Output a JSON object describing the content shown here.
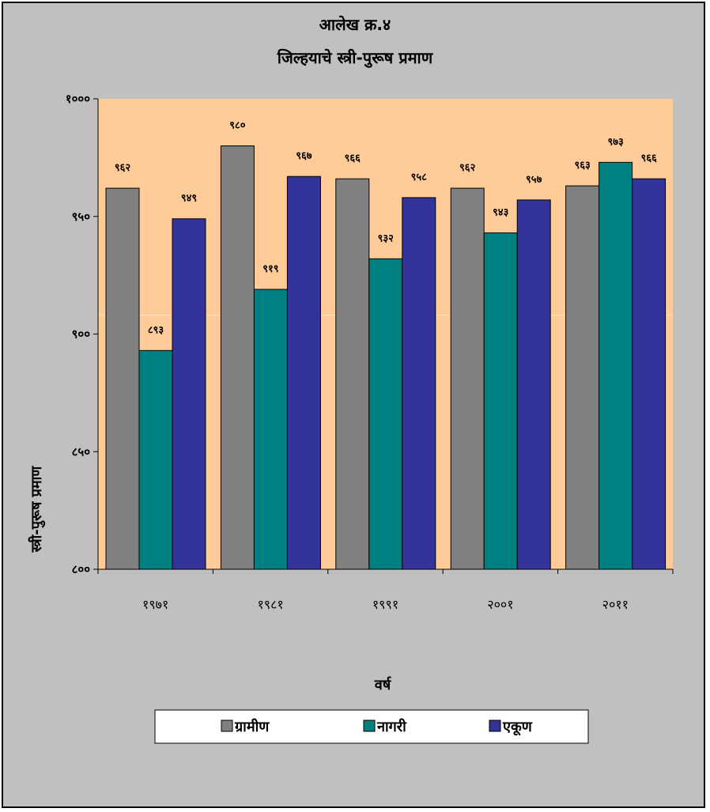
{
  "colors": {
    "frame_bg": "#c0c0c0",
    "plot_bg": "#ffcc99",
    "gridline": "#f5e6c8"
  },
  "chart_data": {
    "type": "bar",
    "title": "आलेख क्र.४",
    "subtitle": "जिल्हयाचे स्त्री-पुरूष प्रमाण",
    "xlabel": "वर्ष",
    "ylabel": "स्त्री-पुरूष प्रमाण",
    "ylim": [
      800,
      1000
    ],
    "yticks": [
      800,
      850,
      900,
      950,
      1000
    ],
    "ytick_labels": [
      "८००",
      "८५०",
      "९००",
      "९५०",
      "१०००"
    ],
    "categories": [
      "१९७१",
      "१९८१",
      "१९९१",
      "२००१",
      "२०११"
    ],
    "series": [
      {
        "name": "ग्रामीण",
        "color": "#808080",
        "values": [
          962,
          980,
          966,
          962,
          963
        ],
        "labels": [
          "९६२",
          "९८०",
          "९६६",
          "९६२",
          "९६३"
        ]
      },
      {
        "name": "नागरी",
        "color": "#008080",
        "values": [
          893,
          919,
          932,
          943,
          973
        ],
        "labels": [
          "८९३",
          "९१९",
          "९३२",
          "९४३",
          "९७३"
        ]
      },
      {
        "name": "एकूण",
        "color": "#333399",
        "values": [
          949,
          967,
          958,
          957,
          966
        ],
        "labels": [
          "९४९",
          "९६७",
          "९५८",
          "९५७",
          "९६६"
        ]
      }
    ],
    "grid": true,
    "legend_position": "bottom"
  }
}
